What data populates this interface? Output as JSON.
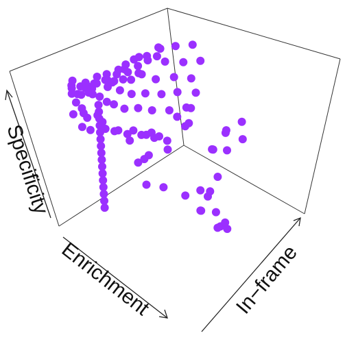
{
  "chart_data": {
    "type": "scatter",
    "title": "",
    "xlabel": "Enrichment",
    "ylabel": "Specificity",
    "zlabel": "In−frame",
    "point_color": "#9b30ff",
    "note_3d": true,
    "grid": false,
    "series": [
      {
        "name": "",
        "points": [
          [
            0.05,
            0.95,
            0.98
          ],
          [
            0.06,
            0.92,
            0.99
          ],
          [
            0.04,
            0.9,
            0.97
          ],
          [
            0.08,
            0.88,
            0.96
          ],
          [
            0.1,
            0.93,
            0.95
          ],
          [
            0.07,
            0.97,
            0.99
          ],
          [
            0.12,
            0.85,
            0.97
          ],
          [
            0.09,
            0.8,
            0.99
          ],
          [
            0.15,
            0.91,
            0.94
          ],
          [
            0.11,
            0.76,
            0.96
          ],
          [
            0.14,
            0.7,
            0.98
          ],
          [
            0.06,
            0.73,
            0.99
          ],
          [
            0.18,
            0.88,
            0.93
          ],
          [
            0.2,
            0.82,
            0.95
          ],
          [
            0.16,
            0.66,
            0.97
          ],
          [
            0.22,
            0.95,
            0.92
          ],
          [
            0.25,
            0.78,
            0.94
          ],
          [
            0.13,
            0.6,
            0.99
          ],
          [
            0.28,
            0.9,
            0.91
          ],
          [
            0.3,
            0.72,
            0.93
          ],
          [
            0.24,
            0.64,
            0.96
          ],
          [
            0.33,
            0.86,
            0.9
          ],
          [
            0.35,
            0.68,
            0.92
          ],
          [
            0.19,
            0.55,
            0.98
          ],
          [
            0.38,
            0.93,
            0.89
          ],
          [
            0.4,
            0.76,
            0.91
          ],
          [
            0.27,
            0.58,
            0.95
          ],
          [
            0.42,
            0.62,
            0.9
          ],
          [
            0.45,
            0.88,
            0.88
          ],
          [
            0.31,
            0.5,
            0.97
          ],
          [
            0.48,
            0.7,
            0.89
          ],
          [
            0.5,
            0.95,
            0.87
          ],
          [
            0.36,
            0.47,
            0.94
          ],
          [
            0.52,
            0.58,
            0.88
          ],
          [
            0.55,
            0.82,
            0.86
          ],
          [
            0.41,
            0.44,
            0.96
          ],
          [
            0.58,
            0.66,
            0.87
          ],
          [
            0.6,
            0.9,
            0.85
          ],
          [
            0.46,
            0.4,
            0.93
          ],
          [
            0.62,
            0.52,
            0.86
          ],
          [
            0.65,
            0.74,
            0.84
          ],
          [
            0.68,
            0.96,
            0.83
          ],
          [
            0.53,
            0.38,
            0.95
          ],
          [
            0.7,
            0.6,
            0.85
          ],
          [
            0.72,
            0.84,
            0.82
          ],
          [
            0.57,
            0.34,
            0.92
          ],
          [
            0.75,
            0.46,
            0.84
          ],
          [
            0.78,
            0.7,
            0.81
          ],
          [
            0.63,
            0.3,
            0.94
          ],
          [
            0.8,
            0.92,
            0.8
          ],
          [
            0.82,
            0.56,
            0.83
          ],
          [
            0.67,
            0.27,
            0.91
          ],
          [
            0.85,
            0.78,
            0.79
          ],
          [
            0.88,
            0.42,
            0.82
          ],
          [
            0.73,
            0.24,
            0.93
          ],
          [
            0.9,
            0.64,
            0.78
          ],
          [
            0.92,
            0.88,
            0.77
          ],
          [
            0.77,
            0.2,
            0.9
          ],
          [
            0.95,
            0.5,
            0.8
          ],
          [
            0.97,
            0.74,
            0.76
          ],
          [
            0.1,
            0.98,
            0.9
          ],
          [
            0.15,
            0.97,
            0.85
          ],
          [
            0.2,
            0.99,
            0.8
          ],
          [
            0.08,
            0.96,
            0.88
          ],
          [
            0.25,
            0.98,
            0.86
          ],
          [
            0.3,
            0.97,
            0.82
          ],
          [
            0.12,
            0.99,
            0.84
          ],
          [
            0.18,
            0.96,
            0.78
          ],
          [
            0.35,
            0.99,
            0.8
          ],
          [
            0.4,
            0.98,
            0.84
          ],
          [
            0.05,
            0.97,
            0.82
          ],
          [
            0.22,
            0.99,
            0.76
          ],
          [
            0.45,
            0.97,
            0.78
          ],
          [
            0.5,
            0.99,
            0.82
          ],
          [
            0.28,
            0.98,
            0.74
          ],
          [
            0.55,
            0.98,
            0.8
          ],
          [
            0.33,
            0.96,
            0.72
          ],
          [
            0.6,
            0.97,
            0.76
          ],
          [
            0.38,
            0.99,
            0.7
          ],
          [
            0.65,
            0.99,
            0.78
          ],
          [
            0.02,
            0.95,
            0.7
          ],
          [
            0.02,
            0.9,
            0.7
          ],
          [
            0.02,
            0.85,
            0.7
          ],
          [
            0.02,
            0.8,
            0.7
          ],
          [
            0.02,
            0.75,
            0.7
          ],
          [
            0.02,
            0.7,
            0.7
          ],
          [
            0.02,
            0.65,
            0.7
          ],
          [
            0.02,
            0.6,
            0.7
          ],
          [
            0.02,
            0.55,
            0.7
          ],
          [
            0.02,
            0.5,
            0.7
          ],
          [
            0.02,
            0.45,
            0.7
          ],
          [
            0.02,
            0.4,
            0.7
          ],
          [
            0.02,
            0.35,
            0.7
          ],
          [
            0.02,
            0.3,
            0.7
          ],
          [
            0.02,
            0.25,
            0.7
          ],
          [
            0.02,
            0.2,
            0.7
          ],
          [
            0.3,
            0.3,
            0.1
          ],
          [
            0.35,
            0.25,
            0.15
          ],
          [
            0.4,
            0.35,
            0.2
          ],
          [
            0.45,
            0.2,
            0.12
          ],
          [
            0.25,
            0.4,
            0.18
          ],
          [
            0.5,
            0.28,
            0.22
          ],
          [
            0.55,
            0.18,
            0.3
          ],
          [
            0.6,
            0.32,
            0.25
          ],
          [
            0.42,
            0.12,
            0.08
          ],
          [
            0.48,
            0.08,
            0.12
          ],
          [
            0.52,
            0.05,
            0.1
          ],
          [
            0.46,
            0.15,
            0.05
          ],
          [
            0.7,
            0.4,
            0.4
          ],
          [
            0.75,
            0.35,
            0.45
          ],
          [
            0.8,
            0.3,
            0.5
          ],
          [
            0.85,
            0.45,
            0.42
          ],
          [
            0.9,
            0.25,
            0.48
          ],
          [
            0.78,
            0.5,
            0.35
          ],
          [
            0.88,
            0.55,
            0.3
          ],
          [
            0.95,
            0.35,
            0.38
          ],
          [
            0.65,
            0.55,
            0.55
          ],
          [
            0.72,
            0.6,
            0.6
          ],
          [
            0.68,
            0.48,
            0.62
          ],
          [
            0.58,
            0.62,
            0.58
          ],
          [
            0.15,
            0.55,
            0.5
          ],
          [
            0.2,
            0.6,
            0.45
          ],
          [
            0.25,
            0.5,
            0.55
          ],
          [
            0.12,
            0.45,
            0.4
          ],
          [
            0.18,
            0.65,
            0.6
          ],
          [
            0.28,
            0.7,
            0.5
          ],
          [
            0.22,
            0.4,
            0.35
          ],
          [
            0.32,
            0.6,
            0.4
          ]
        ]
      }
    ]
  }
}
